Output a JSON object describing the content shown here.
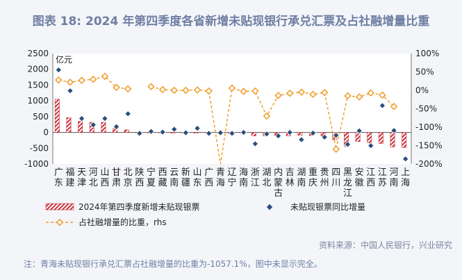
{
  "title": "图表 18: 2024 年第四季度各省新增未贴现银行承兑汇票及占社融增量比重",
  "source": "资料来源：中国人民银行，兴业研究",
  "note": "注：青海未贴现银行承兑汇票占社融增量的比重为-1057.1%，图中未显示完全。",
  "chart_data": {
    "type": "bar",
    "unit_label": "亿元",
    "categories": [
      "广东",
      "福建",
      "天津",
      "河北",
      "山西",
      "甘肃",
      "北京",
      "陕西",
      "宁夏",
      "西藏",
      "云南",
      "新疆",
      "山东",
      "广西",
      "青海",
      "辽宁",
      "海南",
      "浙江",
      "湖北",
      "内蒙古",
      "吉林",
      "湖南",
      "重庆",
      "贵州",
      "四川",
      "黑龙江",
      "安徽",
      "江西",
      "江苏",
      "河南",
      "上海"
    ],
    "left_axis": {
      "min": -1000,
      "max": 2500,
      "ticks": [
        -1000,
        -500,
        0,
        500,
        1000,
        1500,
        2000,
        2500
      ]
    },
    "right_axis": {
      "min": -200,
      "max": 100,
      "ticks": [
        "-200%",
        "-150%",
        "-100%",
        "-50%",
        "0%",
        "50%",
        "100%"
      ]
    },
    "series": [
      {
        "name": "2024年第四季度新增未贴现银票",
        "type": "bar",
        "color": "#c8323c",
        "values": [
          1050,
          470,
          350,
          320,
          320,
          120,
          80,
          -20,
          -20,
          -20,
          -20,
          -20,
          -20,
          -20,
          -10,
          -40,
          -20,
          -110,
          -110,
          -100,
          -110,
          -90,
          -100,
          -110,
          -230,
          -440,
          -290,
          -330,
          -350,
          -460,
          -480
        ]
      },
      {
        "name": "未贴现银票同比增量",
        "type": "scatter",
        "color": "#2a4f7a",
        "values": [
          1980,
          1320,
          440,
          240,
          440,
          180,
          590,
          -30,
          30,
          10,
          100,
          -10,
          130,
          -30,
          -10,
          -30,
          0,
          -360,
          -50,
          -110,
          0,
          -230,
          -20,
          -150,
          -90,
          -380,
          50,
          -420,
          850,
          60,
          -840
        ]
      },
      {
        "name": "占社融增量的比重，rhs",
        "type": "line",
        "color": "#f0a030",
        "values": [
          28,
          22,
          27,
          30,
          38,
          8,
          4,
          null,
          10,
          2,
          0,
          0,
          1,
          -2,
          -1057.1,
          6,
          -3,
          -2,
          -70,
          -14,
          -8,
          -5,
          -11,
          -6,
          -160,
          -15,
          -18,
          -7,
          -13,
          -44,
          null
        ]
      }
    ]
  }
}
